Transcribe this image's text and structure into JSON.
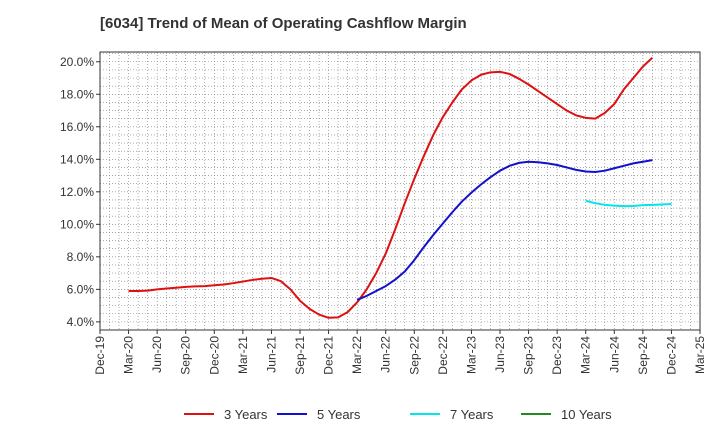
{
  "chart_data": {
    "type": "line",
    "title": "[6034]  Trend of Mean of Operating Cashflow Margin",
    "x_ticks": [
      "Dec-19",
      "Mar-20",
      "Jun-20",
      "Sep-20",
      "Dec-20",
      "Mar-21",
      "Jun-21",
      "Sep-21",
      "Dec-21",
      "Mar-22",
      "Jun-22",
      "Sep-22",
      "Dec-22",
      "Mar-23",
      "Jun-23",
      "Sep-23",
      "Dec-23",
      "Mar-24",
      "Jun-24",
      "Sep-24",
      "Dec-24",
      "Mar-25"
    ],
    "y_ticks": [
      "4.0%",
      "6.0%",
      "8.0%",
      "10.0%",
      "12.0%",
      "14.0%",
      "16.0%",
      "18.0%",
      "20.0%"
    ],
    "ylim": [
      3.5,
      20.6
    ],
    "grid": true,
    "legend_position": "bottom",
    "series": [
      {
        "name": "3 Years",
        "color": "#dd1111",
        "points": [
          [
            "Mar-20",
            5.9
          ],
          [
            "Apr-20",
            5.9
          ],
          [
            "May-20",
            5.92
          ],
          [
            "Jun-20",
            6.0
          ],
          [
            "Jul-20",
            6.05
          ],
          [
            "Aug-20",
            6.1
          ],
          [
            "Sep-20",
            6.15
          ],
          [
            "Oct-20",
            6.18
          ],
          [
            "Nov-20",
            6.2
          ],
          [
            "Dec-20",
            6.25
          ],
          [
            "Jan-21",
            6.3
          ],
          [
            "Feb-21",
            6.38
          ],
          [
            "Mar-21",
            6.48
          ],
          [
            "Apr-21",
            6.58
          ],
          [
            "May-21",
            6.65
          ],
          [
            "Jun-21",
            6.7
          ],
          [
            "Jul-21",
            6.5
          ],
          [
            "Aug-21",
            6.0
          ],
          [
            "Sep-21",
            5.3
          ],
          [
            "Oct-21",
            4.8
          ],
          [
            "Nov-21",
            4.45
          ],
          [
            "Dec-21",
            4.25
          ],
          [
            "Jan-22",
            4.28
          ],
          [
            "Feb-22",
            4.6
          ],
          [
            "Mar-22",
            5.2
          ],
          [
            "Apr-22",
            6.0
          ],
          [
            "May-22",
            7.0
          ],
          [
            "Jun-22",
            8.2
          ],
          [
            "Jul-22",
            9.7
          ],
          [
            "Aug-22",
            11.3
          ],
          [
            "Sep-22",
            12.8
          ],
          [
            "Oct-22",
            14.2
          ],
          [
            "Nov-22",
            15.5
          ],
          [
            "Dec-22",
            16.6
          ],
          [
            "Jan-23",
            17.5
          ],
          [
            "Feb-23",
            18.3
          ],
          [
            "Mar-23",
            18.85
          ],
          [
            "Apr-23",
            19.2
          ],
          [
            "May-23",
            19.35
          ],
          [
            "Jun-23",
            19.38
          ],
          [
            "Jul-23",
            19.25
          ],
          [
            "Aug-23",
            18.95
          ],
          [
            "Sep-23",
            18.6
          ],
          [
            "Oct-23",
            18.2
          ],
          [
            "Nov-23",
            17.8
          ],
          [
            "Dec-23",
            17.4
          ],
          [
            "Jan-24",
            17.0
          ],
          [
            "Feb-24",
            16.7
          ],
          [
            "Mar-24",
            16.55
          ],
          [
            "Apr-24",
            16.5
          ],
          [
            "May-24",
            16.85
          ],
          [
            "Jun-24",
            17.4
          ],
          [
            "Jul-24",
            18.3
          ],
          [
            "Aug-24",
            19.0
          ],
          [
            "Sep-24",
            19.7
          ],
          [
            "Oct-24",
            20.25
          ]
        ]
      },
      {
        "name": "5 Years",
        "color": "#1111cc",
        "points": [
          [
            "Mar-22",
            5.35
          ],
          [
            "Apr-22",
            5.6
          ],
          [
            "May-22",
            5.9
          ],
          [
            "Jun-22",
            6.2
          ],
          [
            "Jul-22",
            6.6
          ],
          [
            "Aug-22",
            7.1
          ],
          [
            "Sep-22",
            7.8
          ],
          [
            "Oct-22",
            8.6
          ],
          [
            "Nov-22",
            9.35
          ],
          [
            "Dec-22",
            10.05
          ],
          [
            "Jan-23",
            10.75
          ],
          [
            "Feb-23",
            11.4
          ],
          [
            "Mar-23",
            11.95
          ],
          [
            "Apr-23",
            12.45
          ],
          [
            "May-23",
            12.9
          ],
          [
            "Jun-23",
            13.3
          ],
          [
            "Jul-23",
            13.6
          ],
          [
            "Aug-23",
            13.78
          ],
          [
            "Sep-23",
            13.85
          ],
          [
            "Oct-23",
            13.82
          ],
          [
            "Nov-23",
            13.75
          ],
          [
            "Dec-23",
            13.65
          ],
          [
            "Jan-24",
            13.5
          ],
          [
            "Feb-24",
            13.35
          ],
          [
            "Mar-24",
            13.25
          ],
          [
            "Apr-24",
            13.22
          ],
          [
            "May-24",
            13.3
          ],
          [
            "Jun-24",
            13.45
          ],
          [
            "Jul-24",
            13.6
          ],
          [
            "Aug-24",
            13.75
          ],
          [
            "Sep-24",
            13.85
          ],
          [
            "Oct-24",
            13.95
          ]
        ]
      },
      {
        "name": "7 Years",
        "color": "#00e5ee",
        "points": [
          [
            "Mar-24",
            11.45
          ],
          [
            "Apr-24",
            11.3
          ],
          [
            "May-24",
            11.2
          ],
          [
            "Jun-24",
            11.15
          ],
          [
            "Jul-24",
            11.12
          ],
          [
            "Aug-24",
            11.13
          ],
          [
            "Sep-24",
            11.18
          ],
          [
            "Oct-24",
            11.2
          ],
          [
            "Nov-24",
            11.22
          ],
          [
            "Dec-24",
            11.25
          ]
        ]
      },
      {
        "name": "10 Years",
        "color": "#228b22",
        "points": []
      }
    ]
  }
}
